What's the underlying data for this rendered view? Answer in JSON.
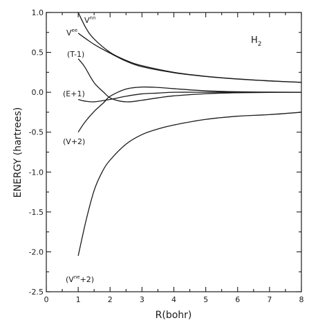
{
  "chart_data": {
    "type": "line",
    "title": "",
    "xlabel": "R(bohr)",
    "ylabel": "ENERGY (hartrees)",
    "xlim": [
      0,
      8
    ],
    "ylim": [
      -2.5,
      1.0
    ],
    "xticks": [
      "0",
      "1",
      "2",
      "3",
      "4",
      "5",
      "6",
      "7",
      "8"
    ],
    "yticks": [
      "1.0",
      "0.5",
      "0.0",
      "-0.5",
      "-1.0",
      "-1.5",
      "-2.0",
      "-2.5"
    ],
    "grid": false,
    "molecule": {
      "base": "H",
      "sub": "2"
    },
    "series": [
      {
        "name": "Vnn",
        "label_main": "V",
        "label_sup": "nn",
        "label_suffix": "",
        "x": [
          1.0,
          1.25,
          1.5,
          2.0,
          2.5,
          3.0,
          4.0,
          5.0,
          6.0,
          7.0,
          8.0
        ],
        "y": [
          1.0,
          0.8,
          0.667,
          0.5,
          0.4,
          0.333,
          0.25,
          0.2,
          0.167,
          0.143,
          0.125
        ]
      },
      {
        "name": "Vee",
        "label_main": "V",
        "label_sup": "ee",
        "label_suffix": "",
        "x": [
          1.0,
          1.5,
          2.0,
          2.5,
          3.0,
          4.0,
          5.0,
          6.0,
          7.0,
          8.0
        ],
        "y": [
          0.74,
          0.6,
          0.49,
          0.39,
          0.32,
          0.245,
          0.198,
          0.165,
          0.142,
          0.124
        ]
      },
      {
        "name": "(T-1)",
        "label_main": "(T-1)",
        "label_sup": "",
        "label_suffix": "",
        "x": [
          1.0,
          1.2,
          1.5,
          1.8,
          2.0,
          2.3,
          2.6,
          3.0,
          3.5,
          4.0,
          5.0,
          6.0,
          7.0,
          8.0
        ],
        "y": [
          0.42,
          0.32,
          0.12,
          0.0,
          -0.07,
          -0.11,
          -0.12,
          -0.1,
          -0.07,
          -0.045,
          -0.018,
          -0.006,
          -0.002,
          0.0
        ]
      },
      {
        "name": "(E+1)",
        "label_main": "(E+1)",
        "label_sup": "",
        "label_suffix": "",
        "x": [
          1.0,
          1.2,
          1.5,
          2.0,
          2.5,
          3.0,
          3.5,
          4.0,
          5.0,
          6.0,
          7.0,
          8.0
        ],
        "y": [
          -0.09,
          -0.11,
          -0.12,
          -0.09,
          -0.05,
          -0.02,
          -0.01,
          0.0,
          0.0,
          0.0,
          0.0,
          0.0
        ]
      },
      {
        "name": "(V+2)",
        "label_main": "(V+2)",
        "label_sup": "",
        "label_suffix": "",
        "x": [
          1.0,
          1.2,
          1.5,
          1.8,
          2.0,
          2.5,
          3.0,
          3.5,
          4.0,
          5.0,
          6.0,
          7.0,
          8.0
        ],
        "y": [
          -0.5,
          -0.38,
          -0.24,
          -0.13,
          -0.05,
          0.04,
          0.065,
          0.06,
          0.045,
          0.018,
          0.006,
          0.002,
          0.0
        ]
      },
      {
        "name": "(Vne+2)",
        "label_main": "(V",
        "label_sup": "ne",
        "label_suffix": "+2)",
        "x": [
          1.0,
          1.25,
          1.5,
          1.75,
          2.0,
          2.5,
          3.0,
          3.5,
          4.0,
          5.0,
          6.0,
          7.0,
          8.0
        ],
        "y": [
          -2.05,
          -1.6,
          -1.23,
          -1.0,
          -0.85,
          -0.65,
          -0.53,
          -0.46,
          -0.41,
          -0.34,
          -0.3,
          -0.28,
          -0.25
        ]
      }
    ]
  }
}
